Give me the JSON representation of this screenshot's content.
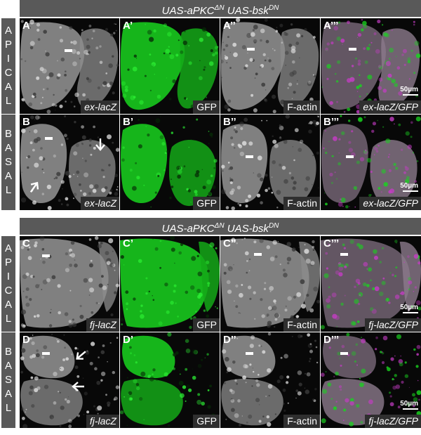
{
  "banners": [
    "UAS-aPKCΔN UAS-bskDN",
    "UAS-aPKCΔN UAS-bskDN"
  ],
  "sides": [
    [
      "A",
      "P",
      "I",
      "C",
      "A",
      "L"
    ],
    [
      "B",
      "A",
      "S",
      "A",
      "L"
    ],
    [
      "A",
      "P",
      "I",
      "C",
      "A",
      "L"
    ],
    [
      "B",
      "A",
      "S",
      "A",
      "L"
    ]
  ],
  "rows": [
    {
      "panels": [
        {
          "id": "A",
          "tag": "ex-lacZ",
          "kind": "gray"
        },
        {
          "id": "A’",
          "tag": "GFP",
          "kind": "green"
        },
        {
          "id": "A’’",
          "tag": "F-actin",
          "kind": "gray"
        },
        {
          "id": "A’’’",
          "tag": "ex-lacZ/GFP",
          "kind": "merge",
          "scale": "50µm"
        }
      ]
    },
    {
      "panels": [
        {
          "id": "B",
          "tag": "ex-lacZ",
          "kind": "gray"
        },
        {
          "id": "B’",
          "tag": "GFP",
          "kind": "green"
        },
        {
          "id": "B’’",
          "tag": "F-actin",
          "kind": "gray"
        },
        {
          "id": "B’’’",
          "tag": "ex-lacZ/GFP",
          "kind": "merge",
          "scale": "50µm"
        }
      ]
    },
    {
      "panels": [
        {
          "id": "C",
          "tag": "fj-lacZ",
          "kind": "gray"
        },
        {
          "id": "C’",
          "tag": "GFP",
          "kind": "green"
        },
        {
          "id": "C’’",
          "tag": "F-actin",
          "kind": "gray"
        },
        {
          "id": "C’’’",
          "tag": "fj-lacZ/GFP",
          "kind": "merge",
          "scale": "50µm"
        }
      ]
    },
    {
      "panels": [
        {
          "id": "D",
          "tag": "fj-lacZ",
          "kind": "gray"
        },
        {
          "id": "D’",
          "tag": "GFP",
          "kind": "green"
        },
        {
          "id": "D’’",
          "tag": "F-actin",
          "kind": "gray"
        },
        {
          "id": "D’’’",
          "tag": "fj-lacZ/GFP",
          "kind": "merge",
          "scale": "50µm"
        }
      ]
    }
  ],
  "colors": {
    "banner": "#595959",
    "gray_tissue": "#a8a8a8",
    "gfp": "#19d41f",
    "magenta": "#c43cc4",
    "background": "#080808"
  }
}
